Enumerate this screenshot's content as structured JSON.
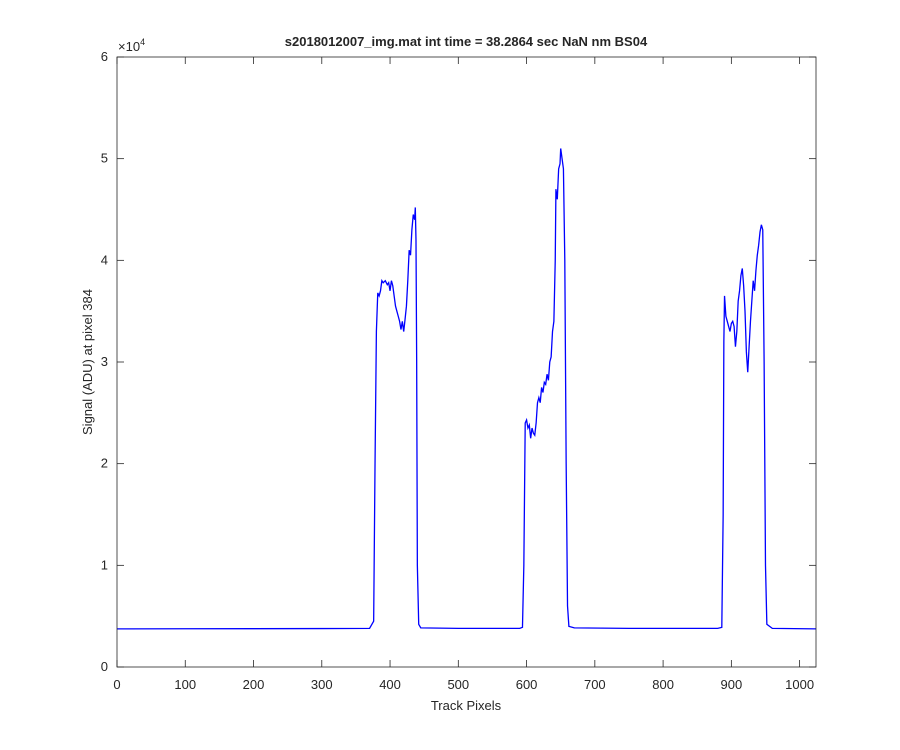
{
  "chart_data": {
    "type": "line",
    "title": "s2018012007_img.mat int time = 38.2864 sec  NaN nm BS04",
    "x_label": "Track Pixels",
    "y_label": "Signal (ADU) at pixel 384",
    "y_scale_label": "×10",
    "y_scale_exponent": "4",
    "xlim": [
      0,
      1024
    ],
    "xticks": [
      0,
      100,
      200,
      300,
      400,
      500,
      600,
      700,
      800,
      900,
      1000
    ],
    "ylim": [
      0,
      60000
    ],
    "yticks": [
      {
        "value": 0,
        "label": "0"
      },
      {
        "value": 10000,
        "label": "1"
      },
      {
        "value": 20000,
        "label": "2"
      },
      {
        "value": 30000,
        "label": "3"
      },
      {
        "value": 40000,
        "label": "4"
      },
      {
        "value": 50000,
        "label": "5"
      },
      {
        "value": 60000,
        "label": "6"
      }
    ],
    "series": [
      {
        "color": "#0000ff",
        "x": [
          0,
          100,
          200,
          300,
          370,
          376,
          378,
          380,
          382,
          384,
          386,
          388,
          390,
          393,
          396,
          398,
          400,
          402,
          404,
          406,
          408,
          410,
          412,
          414,
          416,
          418,
          420,
          422,
          424,
          426,
          428,
          430,
          432,
          434,
          436,
          437,
          438,
          439,
          440,
          442,
          445,
          500,
          590,
          594,
          596,
          598,
          600,
          602,
          604,
          606,
          608,
          610,
          612,
          614,
          616,
          618,
          620,
          622,
          624,
          626,
          628,
          630,
          632,
          634,
          636,
          638,
          640,
          642,
          643,
          645,
          647,
          649,
          650,
          652,
          654,
          656,
          658,
          660,
          662,
          670,
          750,
          880,
          886,
          888,
          889,
          890,
          892,
          894,
          896,
          898,
          900,
          902,
          904,
          906,
          908,
          910,
          912,
          914,
          916,
          918,
          920,
          922,
          924,
          926,
          928,
          930,
          932,
          934,
          936,
          938,
          940,
          942,
          944,
          946,
          948,
          950,
          952,
          960,
          1024
        ],
        "values": [
          3750,
          3760,
          3770,
          3780,
          3800,
          4500,
          20000,
          33000,
          36800,
          36500,
          37000,
          38000,
          37800,
          38000,
          37600,
          37800,
          37000,
          38000,
          37500,
          36500,
          35500,
          35000,
          34500,
          34000,
          33200,
          34000,
          33000,
          34200,
          35500,
          38000,
          41000,
          40500,
          43000,
          44500,
          44000,
          45200,
          42000,
          30000,
          10000,
          4200,
          3850,
          3800,
          3800,
          3900,
          10000,
          24000,
          24300,
          23500,
          23800,
          22500,
          23500,
          23000,
          22800,
          24000,
          26000,
          26500,
          26000,
          27500,
          27000,
          28000,
          27800,
          28800,
          28200,
          30000,
          30500,
          33000,
          34000,
          40000,
          47000,
          46000,
          49000,
          49500,
          51000,
          50000,
          49000,
          40000,
          20000,
          6000,
          4000,
          3850,
          3800,
          3800,
          3900,
          15000,
          32000,
          36500,
          34500,
          34000,
          33500,
          33000,
          33800,
          34000,
          33500,
          31500,
          33000,
          36000,
          37000,
          38500,
          39200,
          37500,
          35000,
          31000,
          29000,
          31500,
          34000,
          36000,
          38000,
          37000,
          39000,
          40500,
          41500,
          42800,
          43500,
          43000,
          30000,
          10000,
          4200,
          3800,
          3750
        ]
      }
    ]
  }
}
